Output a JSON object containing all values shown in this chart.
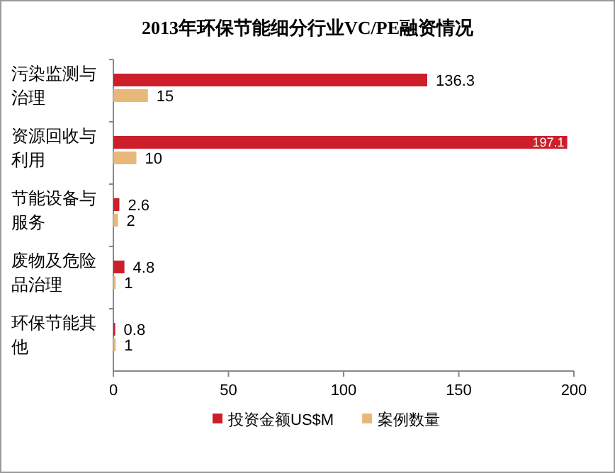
{
  "chart_data": {
    "type": "bar",
    "orientation": "horizontal",
    "title": "2013年环保节能细分行业VC/PE融资情况",
    "categories": [
      "污染监测与治理",
      "资源回收与利用",
      "节能设备与服务",
      "废物及危险品治理",
      "环保节能其他"
    ],
    "series": [
      {
        "name": "投资金额US$M",
        "color": "#cc1f2b",
        "values": [
          136.3,
          197.1,
          2.6,
          4.8,
          0.8
        ]
      },
      {
        "name": "案例数量",
        "color": "#e8b87a",
        "values": [
          15,
          10,
          2,
          1,
          1
        ]
      }
    ],
    "xlim": [
      0,
      200
    ],
    "xticks": [
      0,
      50,
      100,
      150,
      200
    ],
    "data_labels": true,
    "legend": "bottom",
    "grid": false
  }
}
